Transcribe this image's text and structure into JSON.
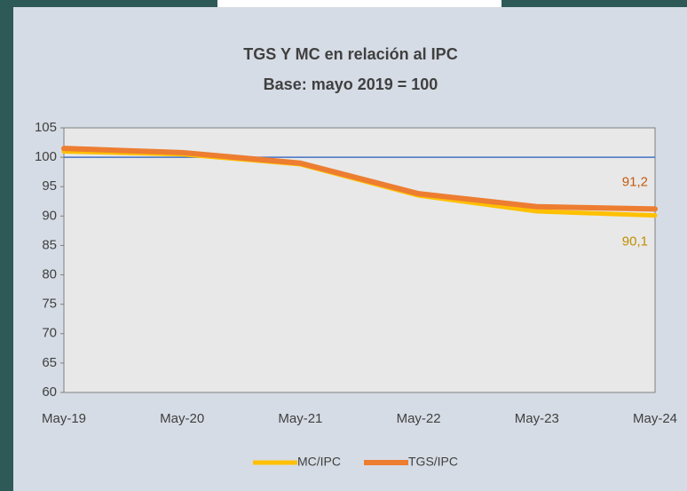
{
  "chart_data": {
    "type": "line",
    "title": "TGS Y MC en relación al IPC",
    "subtitle": "Base: mayo 2019 = 100",
    "categories": [
      "May-19",
      "May-20",
      "May-21",
      "May-22",
      "May-23",
      "May-24"
    ],
    "series": [
      {
        "name": "MC/IPC",
        "color": "#ffc000",
        "values": [
          101,
          100.5,
          98.8,
          93.5,
          90.8,
          90.1
        ],
        "value_labels": [
          null,
          null,
          null,
          null,
          null,
          "90,1"
        ],
        "label_color": "#bf9000"
      },
      {
        "name": "TGS/IPC",
        "color": "#ed7d31",
        "values": [
          101.5,
          100.8,
          99,
          93.8,
          91.6,
          91.2
        ],
        "value_labels": [
          null,
          null,
          null,
          null,
          null,
          "91,2"
        ],
        "label_color": "#c55a11"
      }
    ],
    "reference_line": {
      "value": 100,
      "color": "#4472c4"
    },
    "ylim": [
      60,
      105
    ],
    "yticks": [
      60,
      65,
      70,
      75,
      80,
      85,
      90,
      95,
      100,
      105
    ],
    "legend": "bottom"
  }
}
